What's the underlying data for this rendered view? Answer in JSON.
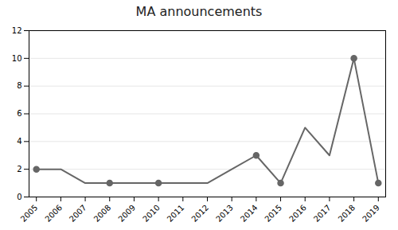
{
  "chart_data": {
    "type": "line",
    "title": "MA announcements",
    "x": [
      2005,
      2006,
      2007,
      2008,
      2009,
      2010,
      2011,
      2012,
      2013,
      2014,
      2015,
      2016,
      2017,
      2018,
      2019
    ],
    "xlim": [
      2004.7,
      2019.3
    ],
    "xticks": [
      2005,
      2006,
      2007,
      2008,
      2009,
      2010,
      2011,
      2012,
      2013,
      2014,
      2015,
      2016,
      2017,
      2018,
      2019
    ],
    "ylim": [
      0,
      12
    ],
    "yticks": [
      0,
      2,
      4,
      6,
      8,
      10,
      12
    ],
    "grid": true,
    "series": [
      {
        "type": "line",
        "color": "#666666",
        "values": [
          2,
          2,
          1,
          1,
          1,
          1,
          1,
          1,
          2,
          3,
          1,
          5,
          3,
          10,
          1
        ]
      },
      {
        "type": "scatter",
        "marker": "circle",
        "color": "#666666",
        "x": [
          2005,
          2008,
          2010,
          2014,
          2015,
          2018,
          2019
        ],
        "values": [
          2,
          1,
          1,
          3,
          1,
          10,
          1
        ]
      }
    ]
  }
}
